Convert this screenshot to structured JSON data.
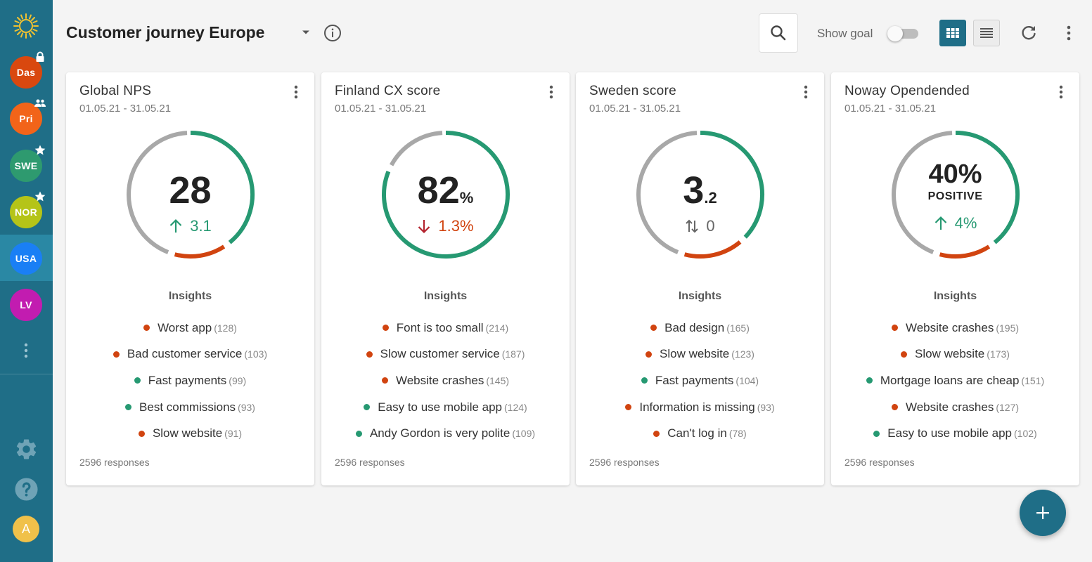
{
  "header": {
    "title": "Customer journey Europe",
    "show_goal_label": "Show goal",
    "show_goal_on": false,
    "active_view": "grid"
  },
  "sidebar": {
    "workspaces": [
      {
        "label": "Das",
        "color": "#d9480f",
        "badge": "lock-icon"
      },
      {
        "label": "Pri",
        "color": "#f26419",
        "badge": "group-icon"
      },
      {
        "label": "SWE",
        "color": "#2e9a6f",
        "badge": "star-icon"
      },
      {
        "label": "NOR",
        "color": "#b5c418",
        "badge": "star-icon"
      },
      {
        "label": "USA",
        "color": "#1a7ff5",
        "badge": ""
      },
      {
        "label": "LV",
        "color": "#c21cb0",
        "badge": ""
      }
    ],
    "active_workspace": "USA",
    "avatar_initial": "A"
  },
  "colors": {
    "primary": "#1f6e87",
    "positive": "#269972",
    "negative": "#d14410",
    "neutral": "#a8a8a8",
    "down_arrow": "#b4232e"
  },
  "cards": [
    {
      "title": "Global NPS",
      "date": "01.05.21 - 31.05.21",
      "value": "28",
      "suffix": "",
      "sub": "",
      "delta": "3.1",
      "delta_dir": "up",
      "gauge": {
        "green": 0.4,
        "red": 0.15
      },
      "insights_label": "Insights",
      "insights": [
        {
          "text": "Worst app",
          "count": "(128)",
          "sentiment": "negative"
        },
        {
          "text": "Bad customer service",
          "count": "(103)",
          "sentiment": "negative"
        },
        {
          "text": "Fast payments",
          "count": "(99)",
          "sentiment": "positive"
        },
        {
          "text": "Best commissions",
          "count": "(93)",
          "sentiment": "positive"
        },
        {
          "text": "Slow website",
          "count": "(91)",
          "sentiment": "negative"
        }
      ],
      "responses": "2596 responses"
    },
    {
      "title": "Finland CX score",
      "date": "01.05.21 - 31.05.21",
      "value": "82",
      "suffix": "%",
      "sub": "",
      "delta": "1.3%",
      "delta_dir": "down",
      "gauge": {
        "green": 0.82,
        "red": 0
      },
      "insights_label": "Insights",
      "insights": [
        {
          "text": "Font is too small",
          "count": "(214)",
          "sentiment": "negative"
        },
        {
          "text": "Slow customer service",
          "count": "(187)",
          "sentiment": "negative"
        },
        {
          "text": "Website crashes",
          "count": "(145)",
          "sentiment": "negative"
        },
        {
          "text": "Easy to use mobile app",
          "count": "(124)",
          "sentiment": "positive"
        },
        {
          "text": "Andy Gordon is very polite",
          "count": "(109)",
          "sentiment": "positive"
        }
      ],
      "responses": "2596 responses"
    },
    {
      "title": "Sweden score",
      "date": "01.05.21 - 31.05.21",
      "value": "3",
      "suffix": ".2",
      "sub": "",
      "delta": "0",
      "delta_dir": "flat",
      "gauge": {
        "green": 0.38,
        "red": 0.17
      },
      "insights_label": "Insights",
      "insights": [
        {
          "text": "Bad design",
          "count": "(165)",
          "sentiment": "negative"
        },
        {
          "text": "Slow website",
          "count": "(123)",
          "sentiment": "negative"
        },
        {
          "text": "Fast payments",
          "count": "(104)",
          "sentiment": "positive"
        },
        {
          "text": "Information is missing",
          "count": "(93)",
          "sentiment": "negative"
        },
        {
          "text": "Can't log in",
          "count": "(78)",
          "sentiment": "negative"
        }
      ],
      "responses": "2596 responses"
    },
    {
      "title": "Noway Opendended",
      "date": "01.05.21 - 31.05.21",
      "value": "40%",
      "suffix": "",
      "sub": "POSITIVE",
      "delta": "4%",
      "delta_dir": "up",
      "gauge": {
        "green": 0.4,
        "red": 0.15
      },
      "insights_label": "Insights",
      "insights": [
        {
          "text": "Website crashes",
          "count": "(195)",
          "sentiment": "negative"
        },
        {
          "text": "Slow website",
          "count": "(173)",
          "sentiment": "negative"
        },
        {
          "text": "Mortgage loans are cheap",
          "count": "(151)",
          "sentiment": "positive"
        },
        {
          "text": "Website crashes",
          "count": "(127)",
          "sentiment": "negative"
        },
        {
          "text": "Easy to use mobile app",
          "count": "(102)",
          "sentiment": "positive"
        }
      ],
      "responses": "2596 responses"
    }
  ]
}
